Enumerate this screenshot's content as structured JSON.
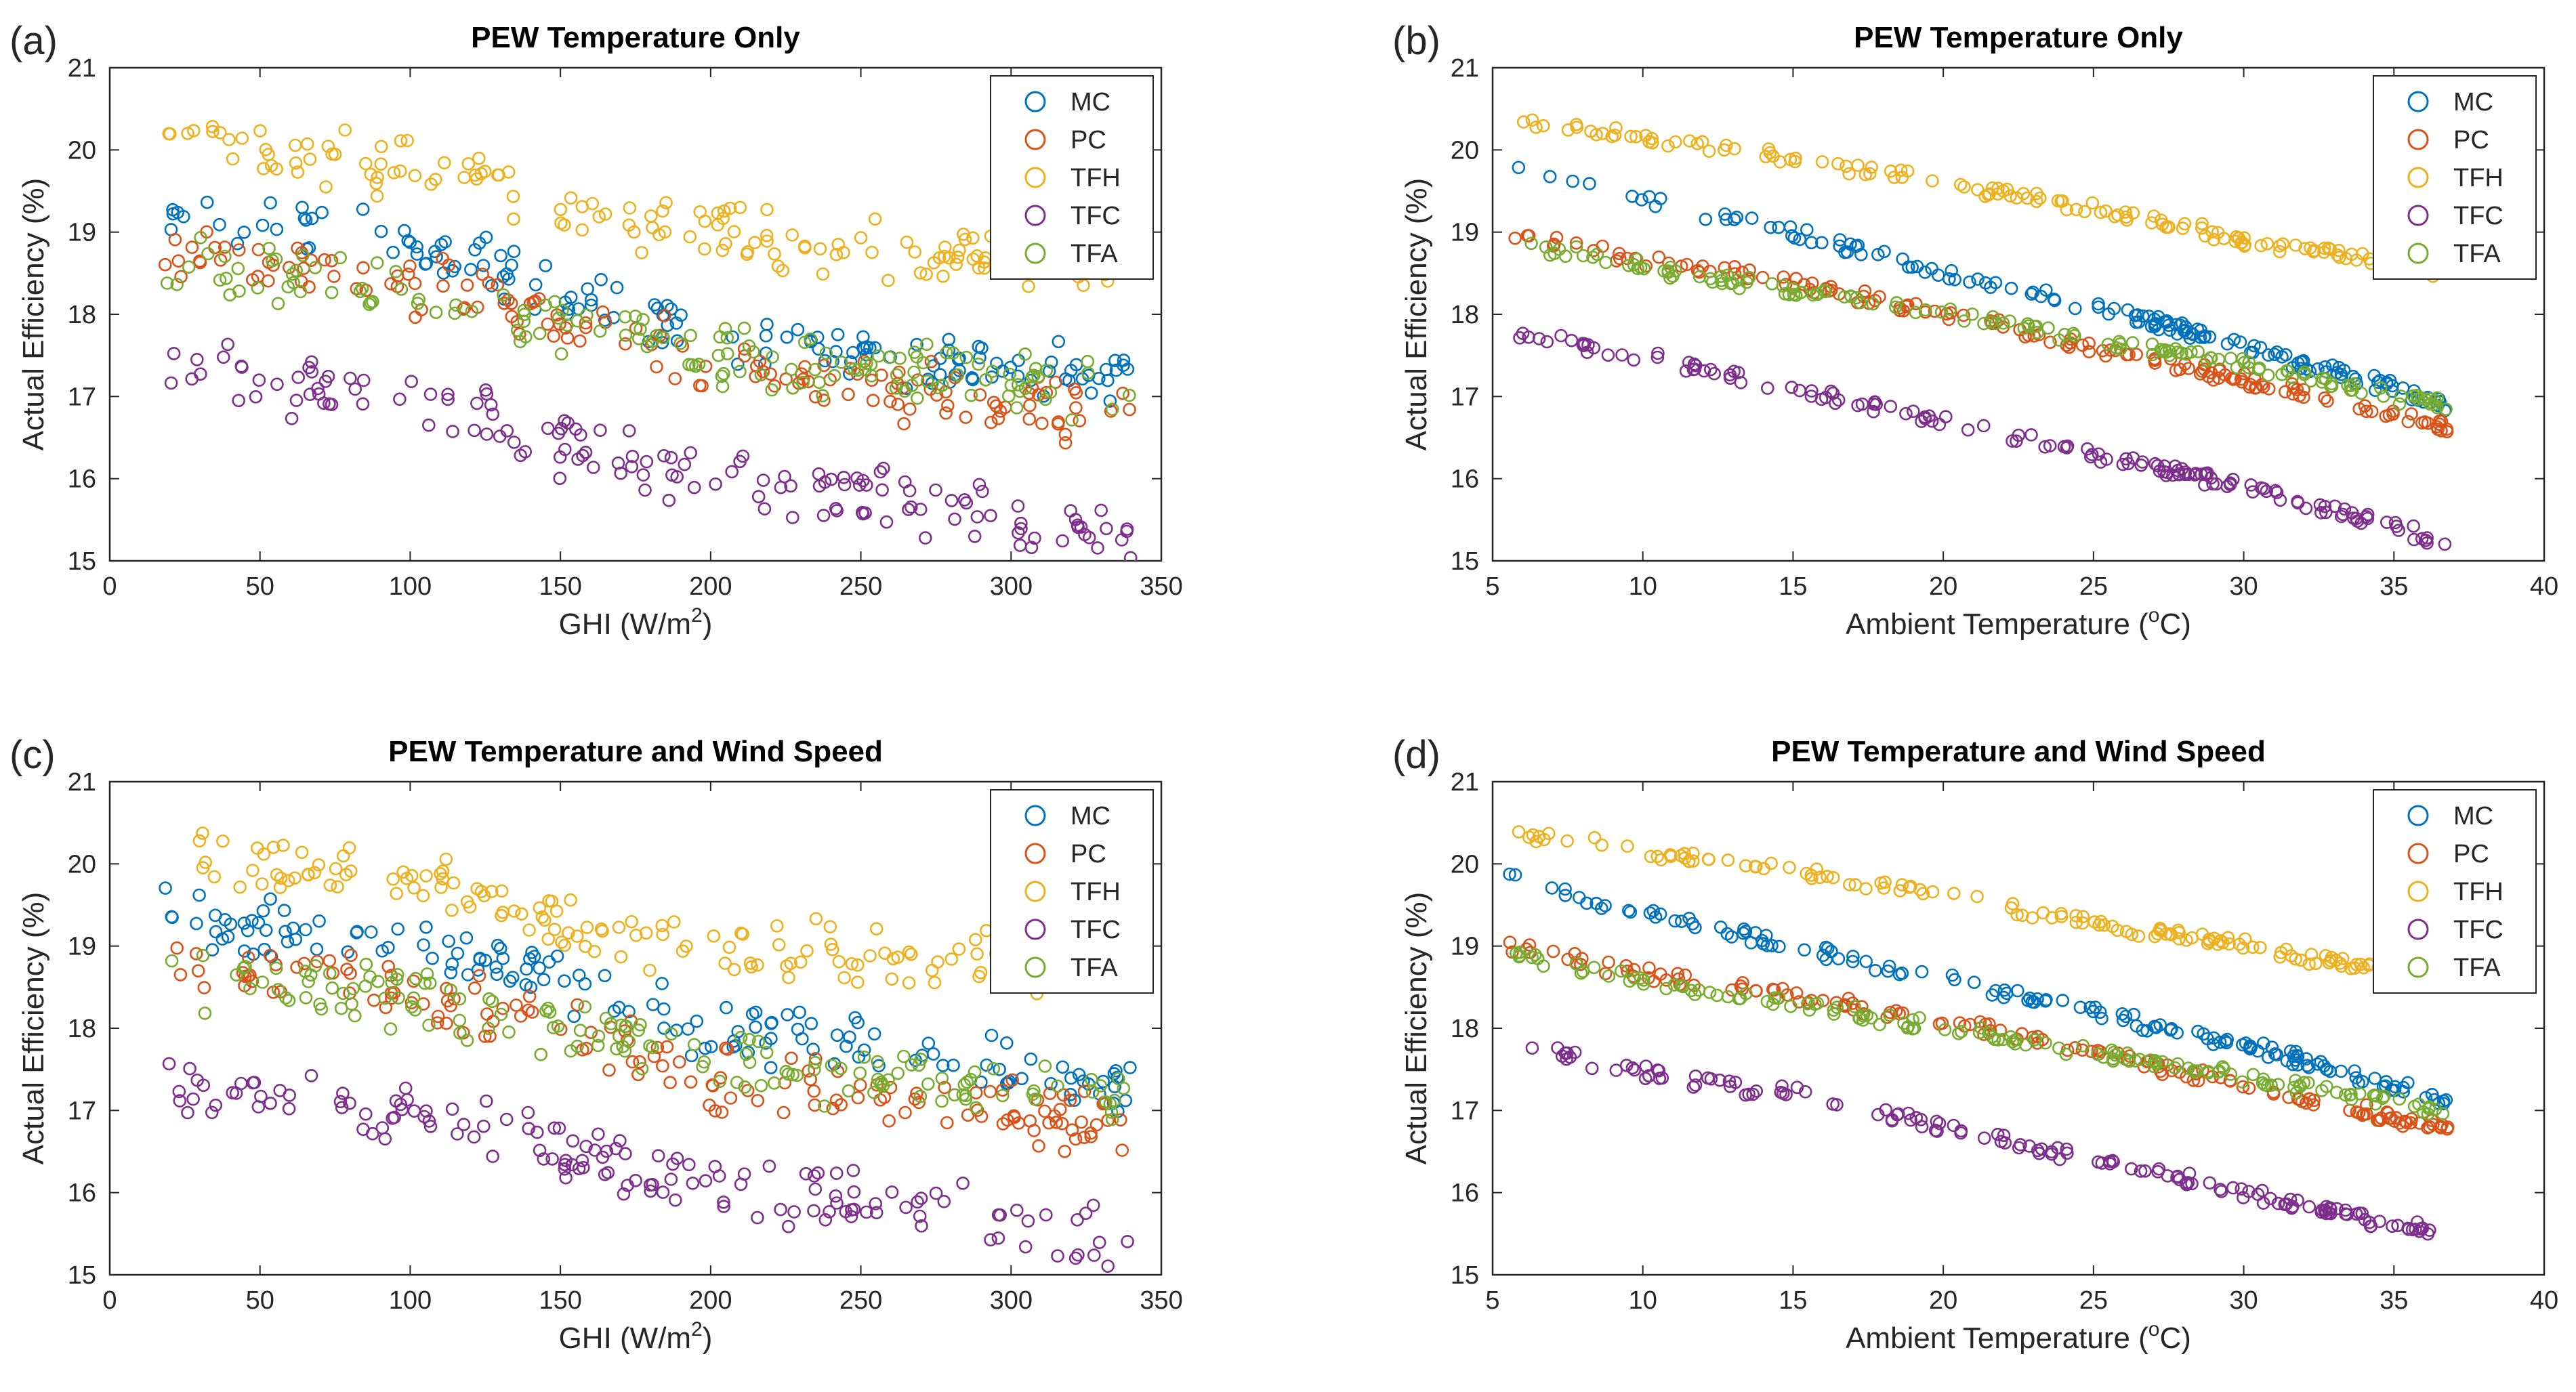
{
  "colors": {
    "MC": "#0072BD",
    "PC": "#D95319",
    "TFH": "#EDB120",
    "TFC": "#7E2F8E",
    "TFA": "#77AC30"
  },
  "chart_data": [
    {
      "type": "scatter",
      "panel": "(a)",
      "title": "PEW Temperature Only",
      "xlabel": "GHI (W/m",
      "xlabel_sup": "2",
      "xlabel_end": ")",
      "ylabel": "Actual Efficiency (%)",
      "xlim": [
        0,
        350
      ],
      "ylim": [
        15,
        21
      ],
      "xticks": [
        "0",
        "50",
        "100",
        "150",
        "200",
        "250",
        "300",
        "350"
      ],
      "yticks": [
        "15",
        "16",
        "17",
        "18",
        "19",
        "20",
        "21"
      ],
      "legend": [
        "MC",
        "PC",
        "TFH",
        "TFC",
        "TFA"
      ],
      "legend_position": "top-right",
      "trend_x": [
        18,
        50,
        100,
        150,
        200,
        250,
        300,
        340
      ],
      "series": [
        {
          "name": "MC",
          "values": [
            19.4,
            19.2,
            18.9,
            18.3,
            17.8,
            17.5,
            17.3,
            17.2
          ]
        },
        {
          "name": "PC",
          "values": [
            18.8,
            18.6,
            18.4,
            17.9,
            17.4,
            17.1,
            17.0,
            16.7
          ]
        },
        {
          "name": "TFH",
          "values": [
            20.2,
            20.0,
            19.8,
            19.3,
            19.0,
            18.8,
            18.7,
            18.6
          ]
        },
        {
          "name": "TFC",
          "values": [
            17.4,
            17.2,
            17.0,
            16.4,
            16.0,
            15.8,
            15.5,
            15.3
          ]
        },
        {
          "name": "TFA",
          "values": [
            18.6,
            18.5,
            18.3,
            17.9,
            17.5,
            17.3,
            17.2,
            17.0
          ]
        }
      ]
    },
    {
      "type": "scatter",
      "panel": "(b)",
      "title": "PEW Temperature Only",
      "xlabel": "Ambient Temperature (",
      "xlabel_sup": "o",
      "xlabel_end": "C)",
      "ylabel": "Actual Efficiency (%)",
      "xlim": [
        5,
        40
      ],
      "ylim": [
        15,
        21
      ],
      "xticks": [
        "5",
        "10",
        "15",
        "20",
        "25",
        "30",
        "35",
        "40"
      ],
      "yticks": [
        "15",
        "16",
        "17",
        "18",
        "19",
        "20",
        "21"
      ],
      "legend": [
        "MC",
        "PC",
        "TFH",
        "TFC",
        "TFA"
      ],
      "legend_position": "top-right",
      "trend_x": [
        5.5,
        11,
        15,
        20,
        25,
        30,
        35,
        36.8
      ],
      "series": [
        {
          "name": "MC",
          "values": [
            19.8,
            19.3,
            19.0,
            18.5,
            18.1,
            17.6,
            17.1,
            16.9
          ]
        },
        {
          "name": "PC",
          "values": [
            19.0,
            18.6,
            18.4,
            18.0,
            17.6,
            17.2,
            16.8,
            16.6
          ]
        },
        {
          "name": "TFH",
          "values": [
            20.4,
            20.1,
            19.9,
            19.6,
            19.3,
            18.9,
            18.6,
            18.5
          ]
        },
        {
          "name": "TFC",
          "values": [
            17.8,
            17.4,
            17.1,
            16.7,
            16.3,
            15.9,
            15.4,
            15.2
          ]
        },
        {
          "name": "TFA",
          "values": [
            18.9,
            18.5,
            18.3,
            18.0,
            17.7,
            17.4,
            17.0,
            16.9
          ]
        }
      ]
    },
    {
      "type": "scatter",
      "panel": "(c)",
      "title": "PEW Temperature and Wind Speed",
      "xlabel": "GHI (W/m",
      "xlabel_sup": "2",
      "xlabel_end": ")",
      "ylabel": "Actual Efficiency (%)",
      "xlim": [
        0,
        350
      ],
      "ylim": [
        15,
        21
      ],
      "xticks": [
        "0",
        "50",
        "100",
        "150",
        "200",
        "250",
        "300",
        "350"
      ],
      "yticks": [
        "15",
        "16",
        "17",
        "18",
        "19",
        "20",
        "21"
      ],
      "legend": [
        "MC",
        "PC",
        "TFH",
        "TFC",
        "TFA"
      ],
      "legend_position": "top-right",
      "trend_x": [
        18,
        50,
        100,
        150,
        200,
        250,
        300,
        340
      ],
      "series": [
        {
          "name": "MC",
          "values": [
            19.4,
            19.2,
            19.0,
            18.6,
            18.0,
            17.8,
            17.5,
            17.3
          ]
        },
        {
          "name": "PC",
          "values": [
            18.8,
            18.6,
            18.4,
            18.0,
            17.4,
            17.2,
            17.0,
            16.8
          ]
        },
        {
          "name": "TFH",
          "values": [
            20.2,
            20.0,
            19.8,
            19.3,
            19.0,
            18.9,
            18.8,
            18.7
          ]
        },
        {
          "name": "TFC",
          "values": [
            17.4,
            17.2,
            17.0,
            16.5,
            16.1,
            15.9,
            15.6,
            15.4
          ]
        },
        {
          "name": "TFA",
          "values": [
            18.6,
            18.5,
            18.4,
            18.0,
            17.6,
            17.4,
            17.2,
            17.1
          ]
        }
      ]
    },
    {
      "type": "scatter",
      "panel": "(d)",
      "title": "PEW Temperature and Wind Speed",
      "xlabel": "Ambient Temperature (",
      "xlabel_sup": "o",
      "xlabel_end": "C)",
      "ylabel": "Actual Efficiency (%)",
      "xlim": [
        5,
        40
      ],
      "ylim": [
        15,
        21
      ],
      "xticks": [
        "5",
        "10",
        "15",
        "20",
        "25",
        "30",
        "35",
        "40"
      ],
      "yticks": [
        "15",
        "16",
        "17",
        "18",
        "19",
        "20",
        "21"
      ],
      "legend": [
        "MC",
        "PC",
        "TFH",
        "TFC",
        "TFA"
      ],
      "legend_position": "top-right",
      "trend_x": [
        5.5,
        11,
        15,
        20,
        25,
        30,
        35,
        36.8
      ],
      "series": [
        {
          "name": "MC",
          "values": [
            19.8,
            19.3,
            19.0,
            18.6,
            18.2,
            17.8,
            17.3,
            17.1
          ]
        },
        {
          "name": "PC",
          "values": [
            19.0,
            18.6,
            18.4,
            18.1,
            17.7,
            17.3,
            16.9,
            16.8
          ]
        },
        {
          "name": "TFH",
          "values": [
            20.4,
            20.1,
            19.9,
            19.6,
            19.3,
            19.0,
            18.7,
            18.6
          ]
        },
        {
          "name": "TFC",
          "values": [
            17.8,
            17.4,
            17.2,
            16.8,
            16.4,
            16.0,
            15.6,
            15.5
          ]
        },
        {
          "name": "TFA",
          "values": [
            18.9,
            18.5,
            18.3,
            18.0,
            17.7,
            17.4,
            17.1,
            17.0
          ]
        }
      ]
    }
  ]
}
